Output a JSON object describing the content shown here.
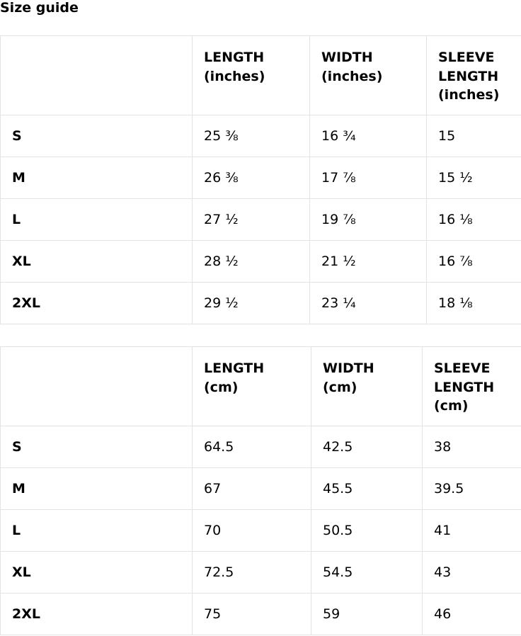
{
  "page": {
    "title": "Size guide"
  },
  "tables": [
    {
      "headers": [
        "",
        [
          "LENGTH",
          "(inches)"
        ],
        [
          "WIDTH",
          "(inches)"
        ],
        [
          "SLEEVE",
          "LENGTH",
          "(inches)"
        ]
      ],
      "rows": [
        [
          "S",
          "25 ⅜",
          "16 ¾",
          "15"
        ],
        [
          "M",
          "26 ⅜",
          "17 ⅞",
          "15 ½"
        ],
        [
          "L",
          "27 ½",
          "19 ⅞",
          "16 ⅛"
        ],
        [
          "XL",
          "28 ½",
          "21 ½",
          "16 ⅞"
        ],
        [
          "2XL",
          "29 ½",
          "23 ¼",
          "18 ⅛"
        ]
      ]
    },
    {
      "headers": [
        "",
        [
          "LENGTH",
          "(cm)"
        ],
        [
          "WIDTH",
          "(cm)"
        ],
        [
          "SLEEVE",
          "LENGTH",
          "(cm)"
        ]
      ],
      "rows": [
        [
          "S",
          "64.5",
          "42.5",
          "38"
        ],
        [
          "M",
          "67",
          "45.5",
          "39.5"
        ],
        [
          "L",
          "70",
          "50.5",
          "41"
        ],
        [
          "XL",
          "72.5",
          "54.5",
          "43"
        ],
        [
          "2XL",
          "75",
          "59",
          "46"
        ]
      ]
    }
  ]
}
